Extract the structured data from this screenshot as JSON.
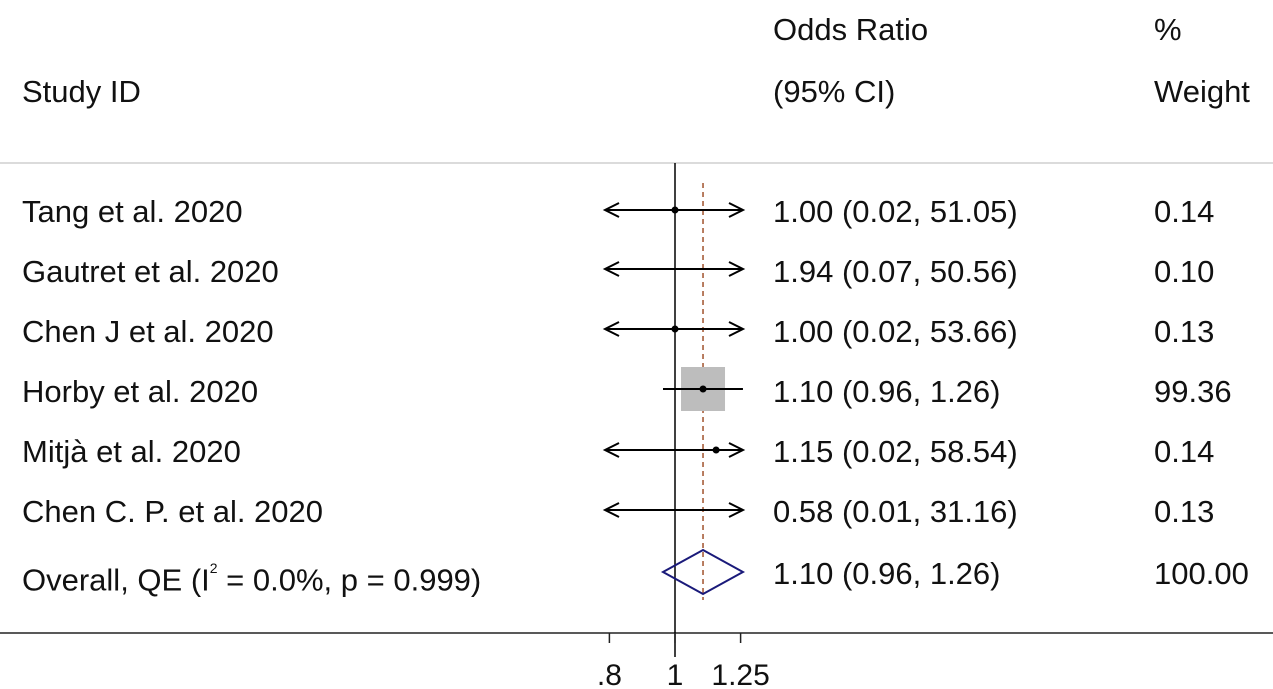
{
  "header": {
    "study_id": "Study ID",
    "or_line1": "Odds Ratio",
    "or_line2": "(95% CI)",
    "wt_line1": "%",
    "wt_line2": "Weight"
  },
  "overall": {
    "label_prefix": "Overall, QE (I",
    "label_sup": "2",
    "label_suffix": " = 0.0%, p = 0.999)",
    "ci_text": "1.10 (0.96, 1.26)",
    "weight": "100.00"
  },
  "colors": {
    "line": "#000000",
    "box": "#bdbdbd",
    "diamond": "#1a1a7a",
    "ref_line": "#a0522d"
  },
  "chart_data": {
    "type": "forest",
    "x_scale": "log",
    "null_value": 1,
    "pooled_ref": 1.1,
    "x_ticks": [
      0.8,
      1,
      1.25
    ],
    "x_tick_labels": [
      ".8",
      "1",
      "1.25"
    ],
    "xlim": [
      0.8,
      1.25
    ],
    "studies": [
      {
        "label": "Tang et al. 2020",
        "or": 1.0,
        "lo": 0.02,
        "hi": 51.05,
        "ci_text": "1.00 (0.02, 51.05)",
        "weight": "0.14"
      },
      {
        "label": "Gautret et al. 2020",
        "or": 1.94,
        "lo": 0.07,
        "hi": 50.56,
        "ci_text": "1.94 (0.07, 50.56)",
        "weight": "0.10"
      },
      {
        "label": "Chen J et al. 2020",
        "or": 1.0,
        "lo": 0.02,
        "hi": 53.66,
        "ci_text": "1.00 (0.02, 53.66)",
        "weight": "0.13"
      },
      {
        "label": "Horby et al. 2020",
        "or": 1.1,
        "lo": 0.96,
        "hi": 1.26,
        "ci_text": "1.10 (0.96, 1.26)",
        "weight": "99.36"
      },
      {
        "label": "Mitjà et al. 2020",
        "or": 1.15,
        "lo": 0.02,
        "hi": 58.54,
        "ci_text": "1.15 (0.02, 58.54)",
        "weight": "0.14"
      },
      {
        "label": "Chen C. P. et al. 2020",
        "or": 0.58,
        "lo": 0.01,
        "hi": 31.16,
        "ci_text": "0.58 (0.01, 31.16)",
        "weight": "0.13"
      }
    ],
    "overall": {
      "or": 1.1,
      "lo": 0.96,
      "hi": 1.26,
      "weight": "100.00"
    }
  }
}
